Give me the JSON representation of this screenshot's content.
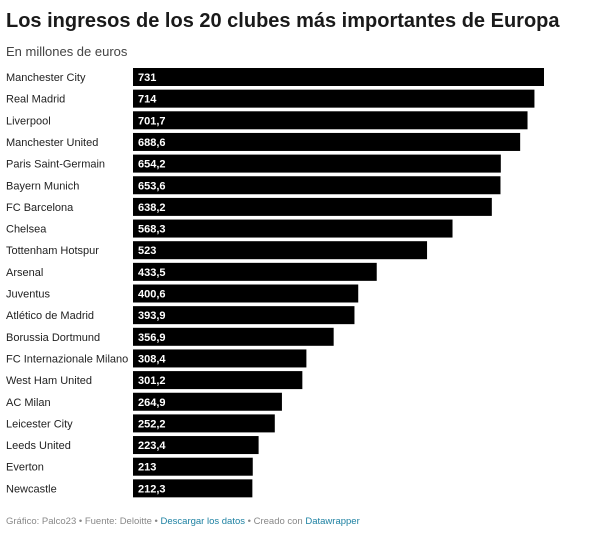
{
  "chart_data": {
    "type": "bar",
    "orientation": "horizontal",
    "title": "Los ingresos de los 20 clubes más importantes de Europa",
    "subtitle": "En millones de euros",
    "xlim": [
      0,
      731
    ],
    "grid": false,
    "bar_color": "#000000",
    "categories": [
      "Manchester City",
      "Real Madrid",
      "Liverpool",
      "Manchester United",
      "Paris Saint-Germain",
      "Bayern Munich",
      "FC Barcelona",
      "Chelsea",
      "Tottenham Hotspur",
      "Arsenal",
      "Juventus",
      "Atlético de Madrid",
      "Borussia Dortmund",
      "FC Internazionale Milano",
      "West Ham United",
      "AC Milan",
      "Leicester City",
      "Leeds United",
      "Everton",
      "Newcastle"
    ],
    "values": [
      731,
      714,
      701.7,
      688.6,
      654.2,
      653.6,
      638.2,
      568.3,
      523,
      433.5,
      400.6,
      393.9,
      356.9,
      308.4,
      301.2,
      264.9,
      252.2,
      223.4,
      213,
      212.3
    ],
    "value_labels": [
      "731",
      "714",
      "701,7",
      "688,6",
      "654,2",
      "653,6",
      "638,2",
      "568,3",
      "523",
      "433,5",
      "400,6",
      "393,9",
      "356,9",
      "308,4",
      "301,2",
      "264,9",
      "252,2",
      "223,4",
      "213",
      "212,3"
    ]
  },
  "footer": {
    "prefix": "Gráfico: Palco23 • Fuente: Deloitte • ",
    "download_link": "Descargar los datos",
    "middle": " • Creado con ",
    "tool_link": "Datawrapper"
  }
}
